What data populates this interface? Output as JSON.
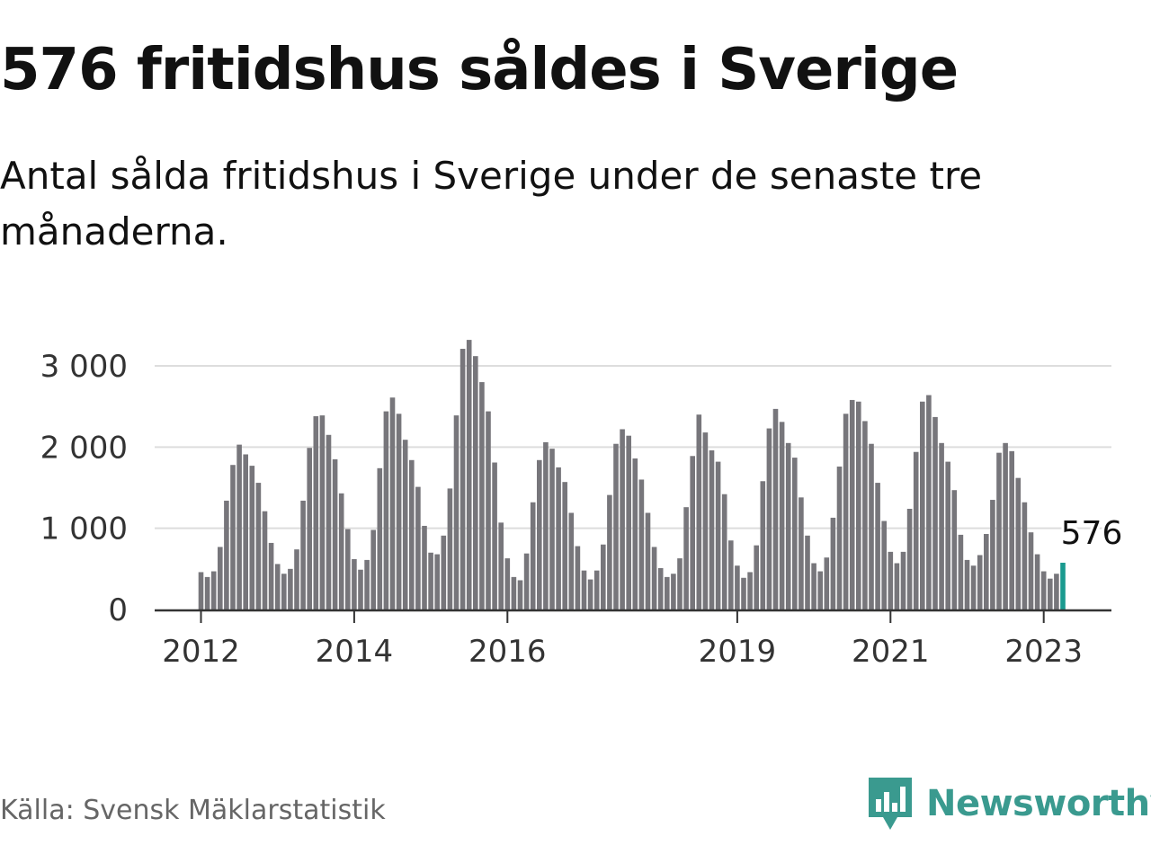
{
  "title": "576 fritidshus såldes i Sverige",
  "subtitle": "Antal sålda fritidshus i Sverige under de senaste tre månaderna.",
  "source": "Källa: Svensk Mäklarstatistik",
  "brand": {
    "name": "Newsworthy",
    "icon": "newsworthy-logo-icon"
  },
  "colors": {
    "bar": "#77767b",
    "highlight": "#1a9a8f",
    "grid": "#dddddd",
    "axis": "#333333",
    "brand": "#3a9a8f"
  },
  "chart_data": {
    "type": "bar",
    "title": "576 fritidshus såldes i Sverige",
    "subtitle": "Antal sålda fritidshus i Sverige under de senaste tre månaderna.",
    "x_start": "2012-01",
    "x_ticks": [
      "2012",
      "2014",
      "2016",
      "2019",
      "2021",
      "2023"
    ],
    "y_ticks": [
      "0",
      "1 000",
      "2 000",
      "3 000"
    ],
    "y_tick_values": [
      0,
      1000,
      2000,
      3000
    ],
    "ylim": [
      0,
      3000
    ],
    "grid": true,
    "highlight_label": "576",
    "values": [
      460,
      400,
      470,
      770,
      1340,
      1780,
      2030,
      1910,
      1770,
      1560,
      1210,
      820,
      560,
      440,
      500,
      740,
      1340,
      1990,
      2380,
      2390,
      2150,
      1850,
      1430,
      990,
      620,
      490,
      610,
      980,
      1740,
      2440,
      2610,
      2410,
      2090,
      1840,
      1510,
      1030,
      700,
      680,
      910,
      1490,
      2390,
      3210,
      3320,
      3120,
      2800,
      2440,
      1810,
      1070,
      630,
      400,
      360,
      690,
      1320,
      1840,
      2060,
      1980,
      1750,
      1570,
      1190,
      780,
      480,
      370,
      480,
      800,
      1410,
      2040,
      2220,
      2140,
      1860,
      1600,
      1190,
      770,
      510,
      400,
      440,
      630,
      1260,
      1890,
      2400,
      2180,
      1960,
      1820,
      1420,
      850,
      540,
      390,
      460,
      790,
      1580,
      2230,
      2470,
      2310,
      2050,
      1870,
      1380,
      910,
      570,
      470,
      640,
      1130,
      1760,
      2410,
      2580,
      2560,
      2320,
      2040,
      1560,
      1090,
      710,
      570,
      710,
      1240,
      1940,
      2560,
      2640,
      2370,
      2050,
      1820,
      1470,
      920,
      610,
      540,
      670,
      930,
      1350,
      1930,
      2050,
      1950,
      1620,
      1320,
      950,
      680,
      470,
      380,
      440,
      576
    ]
  }
}
